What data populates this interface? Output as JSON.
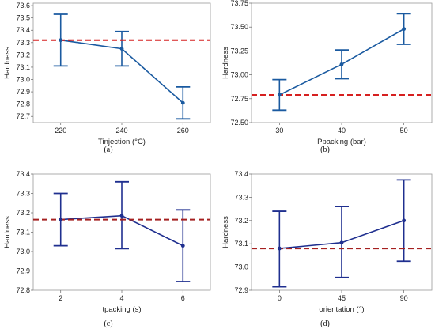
{
  "colors": {
    "line_navy": "#1f2f8f",
    "line_blue": "#1a5aa0",
    "reference": "#d62020",
    "reference_dark": "#a52020"
  },
  "chart_data": [
    {
      "type": "line",
      "caption": "(a)",
      "xlabel": "Tinjection (°C)",
      "ylabel": "Hardness",
      "categories": [
        "220",
        "240",
        "260"
      ],
      "values": [
        73.32,
        73.25,
        72.81
      ],
      "err_low": [
        73.11,
        73.11,
        72.68
      ],
      "err_high": [
        73.53,
        73.39,
        72.94
      ],
      "reference_line": 73.32,
      "ylim": [
        72.65,
        73.62
      ],
      "yticks": [
        "72.7",
        "72.8",
        "72.9",
        "73.0",
        "73.1",
        "73.2",
        "73.3",
        "73.4",
        "73.5",
        "73.6"
      ],
      "line_color": "#1a5aa0",
      "ref_color": "#d62020"
    },
    {
      "type": "line",
      "caption": "(b)",
      "xlabel": "Ppacking (bar)",
      "ylabel": "Hardness",
      "categories": [
        "30",
        "40",
        "50"
      ],
      "values": [
        72.79,
        73.11,
        73.48
      ],
      "err_low": [
        72.63,
        72.96,
        73.32
      ],
      "err_high": [
        72.95,
        73.26,
        73.64
      ],
      "reference_line": 72.79,
      "ylim": [
        72.5,
        73.75
      ],
      "yticks": [
        "72.50",
        "72.75",
        "73.00",
        "73.25",
        "73.50",
        "73.75"
      ],
      "line_color": "#1a5aa0",
      "ref_color": "#d62020"
    },
    {
      "type": "line",
      "caption": "(c)",
      "xlabel": "tpacking (s)",
      "ylabel": "Hardness",
      "categories": [
        "2",
        "4",
        "6"
      ],
      "values": [
        73.165,
        73.185,
        73.03
      ],
      "err_low": [
        73.03,
        73.015,
        72.845
      ],
      "err_high": [
        73.3,
        73.36,
        73.215
      ],
      "reference_line": 73.165,
      "ylim": [
        72.8,
        73.4
      ],
      "yticks": [
        "72.8",
        "72.9",
        "73.0",
        "73.1",
        "73.2",
        "73.3",
        "73.4"
      ],
      "line_color": "#1f2f8f",
      "ref_color": "#a52020"
    },
    {
      "type": "line",
      "caption": "(d)",
      "xlabel": "orientation (°)",
      "ylabel": "Hardness",
      "categories": [
        "0",
        "45",
        "90"
      ],
      "values": [
        73.08,
        73.105,
        73.2
      ],
      "err_low": [
        72.915,
        72.955,
        73.025
      ],
      "err_high": [
        73.24,
        73.26,
        73.375
      ],
      "reference_line": 73.08,
      "ylim": [
        72.9,
        73.4
      ],
      "yticks": [
        "72.9",
        "73.0",
        "73.1",
        "73.2",
        "73.3",
        "73.4"
      ],
      "line_color": "#1f2f8f",
      "ref_color": "#a52020"
    }
  ]
}
